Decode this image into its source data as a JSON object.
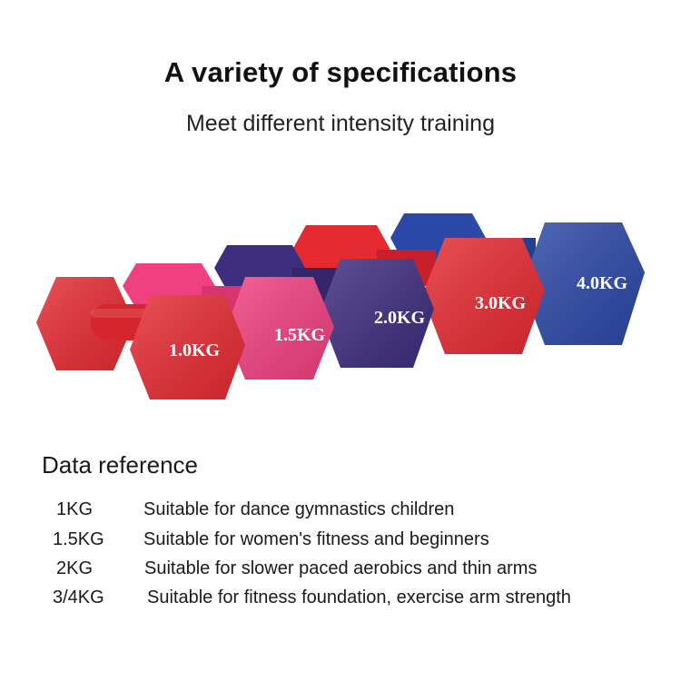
{
  "heading": {
    "title": "A variety of specifications",
    "subtitle": "Meet different intensity training"
  },
  "dumbbells": [
    {
      "label": "1.0KG",
      "color": "#e42b32"
    },
    {
      "label": "1.5KG",
      "color": "#f0407f"
    },
    {
      "label": "2.0KG",
      "color": "#3d2d7d"
    },
    {
      "label": "3.0KG",
      "color": "#e42b32"
    },
    {
      "label": "4.0KG",
      "color": "#2c48a6"
    }
  ],
  "reference": {
    "heading": "Data reference",
    "rows": [
      {
        "weight": "1KG",
        "desc": "Suitable for dance gymnastics children"
      },
      {
        "weight": "1.5KG",
        "desc": "Suitable for women's fitness and beginners"
      },
      {
        "weight": "2KG",
        "desc": "Suitable for slower paced aerobics and thin arms"
      },
      {
        "weight": "3/4KG",
        "desc": "Suitable for fitness foundation, exercise arm strength"
      }
    ]
  }
}
